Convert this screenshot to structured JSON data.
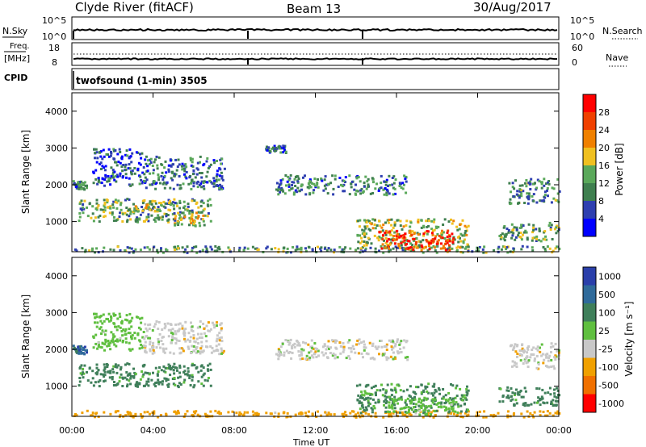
{
  "header": {
    "title": "Clyde River (fitACF)",
    "beam": "Beam 13",
    "date": "30/Aug/2017"
  },
  "strip_top": {
    "left_label": "N.Sky",
    "left_ticks": [
      "10^5",
      "10^0"
    ],
    "right_ticks": [
      "10^5",
      "10^0"
    ],
    "right_label": "N.Search"
  },
  "strip_freq": {
    "left_label_1": "Freq.",
    "left_label_2": "[MHz]",
    "left_ticks": [
      "18",
      "8"
    ],
    "right_ticks": [
      "60",
      "0"
    ],
    "right_label": "Nave"
  },
  "cpid": {
    "label": "CPID",
    "program": "twofsound (1-min) 3505"
  },
  "colors": {
    "power_scale": [
      "#0000ff",
      "#2e3fb0",
      "#3f7f4f",
      "#5aa85a",
      "#f0c020",
      "#f08000",
      "#f04000",
      "#ff0000"
    ],
    "velocity_scale": [
      "#2a3faa",
      "#2f6a9a",
      "#3f7f5a",
      "#5fbf3f",
      "#c8c8c8",
      "#f0a000",
      "#f07000",
      "#ff0000"
    ]
  },
  "chart_data": [
    {
      "type": "heatmap",
      "panel": "power",
      "ylabel": "Slant Range [km]",
      "y_ticks": [
        1000,
        2000,
        3000,
        4000
      ],
      "ylim": [
        180,
        4500
      ],
      "x_ticks": [
        "00:00",
        "04:00",
        "08:00",
        "12:00",
        "16:00",
        "20:00",
        "00:00"
      ],
      "xlim_hours": [
        0,
        24
      ],
      "colorbar": {
        "label": "Power [dB]",
        "ticks": [
          "4",
          "8",
          "12",
          "16",
          "20",
          "24",
          "28"
        ],
        "range": [
          0,
          30
        ]
      },
      "regions": [
        {
          "t0": 0.0,
          "t1": 0.7,
          "r0": 1900,
          "r1": 2150,
          "value": 9
        },
        {
          "t0": 1.0,
          "t1": 3.5,
          "r0": 2000,
          "r1": 3000,
          "value": 6
        },
        {
          "t0": 0.3,
          "t1": 6.8,
          "r0": 1000,
          "r1": 1650,
          "value": 12
        },
        {
          "t0": 3.0,
          "t1": 4.8,
          "r0": 1300,
          "r1": 1600,
          "value": 14
        },
        {
          "t0": 5.0,
          "t1": 6.5,
          "r0": 900,
          "r1": 1300,
          "value": 16
        },
        {
          "t0": 3.5,
          "t1": 7.5,
          "r0": 1900,
          "r1": 2800,
          "value": 8
        },
        {
          "t0": 0.0,
          "t1": 24.0,
          "r0": 180,
          "r1": 360,
          "value": 10
        },
        {
          "t0": 9.5,
          "t1": 10.5,
          "r0": 2900,
          "r1": 3100,
          "value": 8
        },
        {
          "t0": 10.0,
          "t1": 16.5,
          "r0": 1750,
          "r1": 2300,
          "value": 9
        },
        {
          "t0": 14.0,
          "t1": 19.5,
          "r0": 300,
          "r1": 1100,
          "value": 14
        },
        {
          "t0": 15.0,
          "t1": 18.8,
          "r0": 250,
          "r1": 800,
          "value": 26
        },
        {
          "t0": 21.0,
          "t1": 24.0,
          "r0": 500,
          "r1": 1000,
          "value": 12
        },
        {
          "t0": 21.5,
          "t1": 24.0,
          "r0": 1500,
          "r1": 2200,
          "value": 10
        }
      ]
    },
    {
      "type": "heatmap",
      "panel": "velocity",
      "ylabel": "Slant Range [km]",
      "y_ticks": [
        1000,
        2000,
        3000,
        4000
      ],
      "ylim": [
        180,
        4500
      ],
      "x_ticks": [
        "00:00",
        "04:00",
        "08:00",
        "12:00",
        "16:00",
        "20:00",
        "00:00"
      ],
      "xlim_hours": [
        0,
        24
      ],
      "xlabel": "Time UT",
      "colorbar": {
        "label": "Velocity [m s⁻¹]",
        "ticks": [
          "1000",
          "500",
          "100",
          "25",
          "-25",
          "-100",
          "-500",
          "-1000"
        ]
      },
      "regions": [
        {
          "t0": 0.0,
          "t1": 0.7,
          "r0": 1900,
          "r1": 2150,
          "value": 700
        },
        {
          "t0": 1.0,
          "t1": 3.5,
          "r0": 2000,
          "r1": 3000,
          "value": 60
        },
        {
          "t0": 0.3,
          "t1": 6.8,
          "r0": 1000,
          "r1": 1650,
          "value": 200
        },
        {
          "t0": 3.5,
          "t1": 7.5,
          "r0": 1900,
          "r1": 2800,
          "value": 0
        },
        {
          "t0": 0.0,
          "t1": 24.0,
          "r0": 180,
          "r1": 360,
          "value": -60
        },
        {
          "t0": 10.0,
          "t1": 16.5,
          "r0": 1750,
          "r1": 2300,
          "value": 0
        },
        {
          "t0": 14.0,
          "t1": 19.5,
          "r0": 300,
          "r1": 1100,
          "value": 150
        },
        {
          "t0": 15.5,
          "t1": 19.0,
          "r0": 250,
          "r1": 700,
          "value": 60
        },
        {
          "t0": 21.0,
          "t1": 24.0,
          "r0": 500,
          "r1": 1000,
          "value": 200
        },
        {
          "t0": 21.5,
          "t1": 24.0,
          "r0": 1500,
          "r1": 2200,
          "value": 0
        }
      ]
    }
  ]
}
